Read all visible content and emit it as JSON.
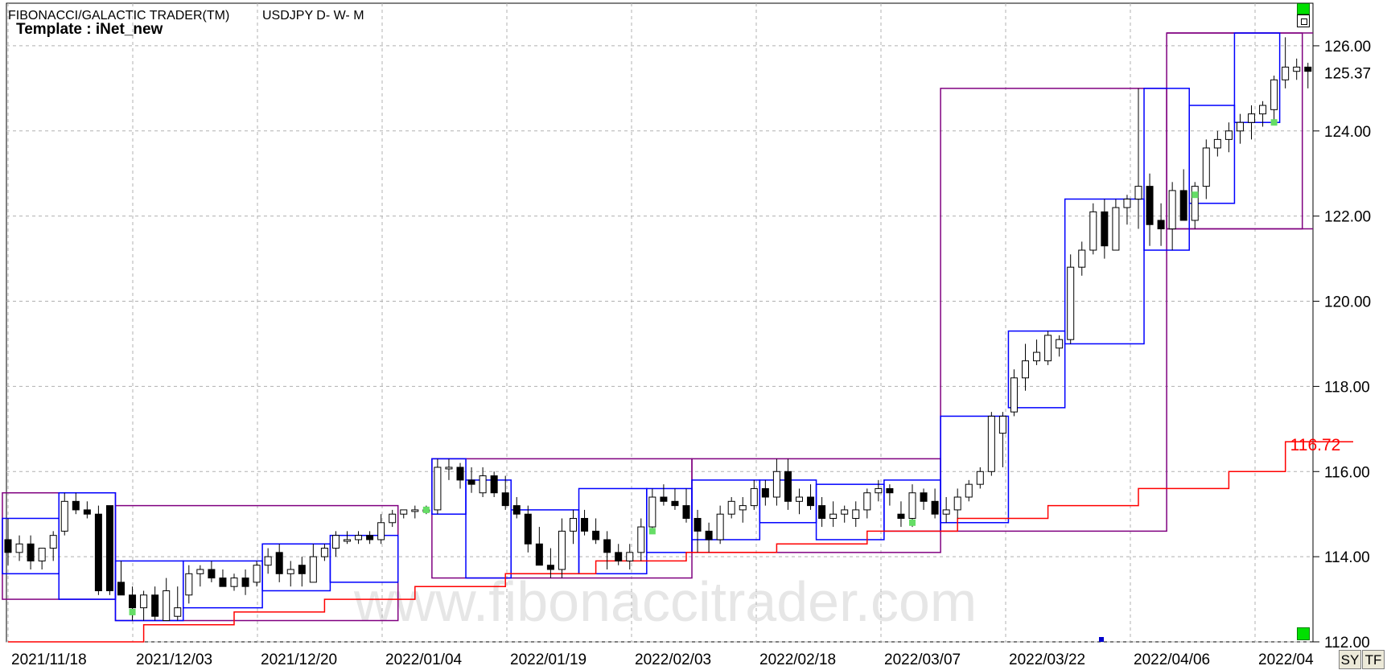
{
  "header": {
    "app_title": "FIBONACCI/GALACTIC TRADER(TM)",
    "instrument": "USDJPY D- W- M",
    "template": "Template : iNet_new"
  },
  "watermark": "www.fibonaccitrader.com",
  "buttons": {
    "sy": "SY",
    "tf": "TF"
  },
  "colors": {
    "candle_up": "#ffffff",
    "candle_down": "#000000",
    "weekly_box": "#0000ff",
    "monthly_box": "#800080",
    "stop_line": "#ff0000",
    "grid": "#b0b0b0",
    "marker": "#66dd66"
  },
  "chart_data": {
    "type": "candlestick",
    "title": "USDJPY D- W- M",
    "ylim": [
      112.0,
      127.0
    ],
    "yticks": [
      "126.00",
      "124.00",
      "122.00",
      "120.00",
      "118.00",
      "116.00",
      "114.00",
      "112.00"
    ],
    "last_price": "125.37",
    "stop_value": "116.72",
    "xticks": [
      "2021/11/18",
      "2021/12/03",
      "2021/12/20",
      "2022/01/04",
      "2022/01/19",
      "2022/02/03",
      "2022/02/18",
      "2022/03/07",
      "2022/03/22",
      "2022/04/06",
      "2022/04"
    ],
    "candles": [
      [
        114.4,
        114.9,
        113.8,
        114.1
      ],
      [
        114.1,
        114.5,
        113.9,
        114.3
      ],
      [
        114.3,
        114.5,
        113.7,
        113.9
      ],
      [
        113.9,
        114.2,
        113.7,
        114.2
      ],
      [
        114.2,
        114.6,
        113.9,
        114.5
      ],
      [
        114.6,
        115.5,
        114.5,
        115.3
      ],
      [
        115.3,
        115.5,
        115.0,
        115.1
      ],
      [
        115.1,
        115.3,
        114.9,
        115.0
      ],
      [
        115.0,
        115.2,
        113.1,
        113.2
      ],
      [
        115.2,
        115.2,
        113.1,
        113.2
      ],
      [
        113.4,
        113.9,
        113.1,
        113.1
      ],
      [
        113.1,
        113.3,
        112.5,
        112.8
      ],
      [
        112.8,
        113.2,
        112.5,
        113.1
      ],
      [
        113.1,
        113.3,
        112.5,
        112.6
      ],
      [
        112.5,
        113.5,
        112.5,
        113.2
      ],
      [
        112.6,
        113.3,
        112.5,
        112.8
      ],
      [
        113.1,
        113.8,
        112.9,
        113.6
      ],
      [
        113.6,
        113.8,
        113.3,
        113.7
      ],
      [
        113.7,
        113.9,
        113.4,
        113.5
      ],
      [
        113.5,
        113.7,
        113.3,
        113.3
      ],
      [
        113.3,
        113.6,
        113.2,
        113.5
      ],
      [
        113.5,
        113.7,
        113.1,
        113.3
      ],
      [
        113.4,
        113.9,
        113.3,
        113.8
      ],
      [
        113.8,
        114.2,
        113.6,
        114.0
      ],
      [
        114.1,
        114.3,
        113.4,
        113.6
      ],
      [
        113.6,
        113.9,
        113.3,
        113.7
      ],
      [
        113.8,
        114.0,
        113.3,
        113.6
      ],
      [
        113.4,
        114.3,
        113.4,
        114.0
      ],
      [
        114.0,
        114.3,
        113.9,
        114.2
      ],
      [
        114.2,
        114.6,
        114.0,
        114.5
      ],
      [
        114.4,
        114.6,
        114.3,
        114.4
      ],
      [
        114.4,
        114.6,
        114.3,
        114.5
      ],
      [
        114.5,
        114.6,
        114.3,
        114.4
      ],
      [
        114.4,
        115.0,
        114.3,
        114.8
      ],
      [
        114.8,
        115.1,
        114.7,
        115.0
      ],
      [
        115.0,
        115.1,
        114.9,
        115.1
      ],
      [
        115.1,
        115.2,
        114.9,
        115.1
      ],
      [
        115.1,
        115.2,
        115.0,
        115.1
      ],
      [
        115.1,
        116.3,
        115.0,
        116.1
      ],
      [
        116.1,
        116.3,
        115.8,
        116.1
      ],
      [
        116.1,
        116.2,
        115.6,
        115.8
      ],
      [
        115.8,
        116.1,
        115.5,
        115.7
      ],
      [
        115.5,
        116.1,
        115.4,
        115.9
      ],
      [
        115.9,
        116.0,
        115.4,
        115.5
      ],
      [
        115.5,
        115.9,
        115.1,
        115.2
      ],
      [
        115.2,
        115.4,
        114.9,
        115.0
      ],
      [
        115.0,
        115.2,
        114.1,
        114.3
      ],
      [
        114.3,
        114.7,
        113.8,
        113.8
      ],
      [
        113.8,
        114.2,
        113.5,
        113.7
      ],
      [
        113.7,
        114.9,
        113.5,
        114.6
      ],
      [
        114.6,
        115.1,
        114.3,
        114.9
      ],
      [
        114.9,
        115.1,
        114.5,
        114.6
      ],
      [
        114.6,
        114.9,
        114.3,
        114.4
      ],
      [
        114.4,
        114.6,
        113.7,
        114.1
      ],
      [
        114.1,
        114.3,
        113.8,
        113.9
      ],
      [
        113.9,
        114.3,
        113.7,
        114.1
      ],
      [
        114.1,
        114.9,
        113.9,
        114.7
      ],
      [
        114.7,
        115.6,
        114.6,
        115.4
      ],
      [
        115.4,
        115.7,
        115.2,
        115.3
      ],
      [
        115.3,
        115.6,
        115.1,
        115.2
      ],
      [
        115.2,
        115.6,
        114.8,
        114.9
      ],
      [
        114.9,
        115.1,
        114.1,
        114.6
      ],
      [
        114.6,
        114.8,
        114.1,
        114.4
      ],
      [
        114.4,
        115.2,
        114.3,
        115.0
      ],
      [
        115.0,
        115.4,
        114.9,
        115.3
      ],
      [
        115.1,
        115.4,
        114.8,
        115.2
      ],
      [
        115.2,
        115.8,
        115.1,
        115.6
      ],
      [
        115.6,
        115.8,
        115.2,
        115.4
      ],
      [
        115.4,
        116.3,
        115.2,
        116.0
      ],
      [
        116.0,
        116.3,
        115.1,
        115.3
      ],
      [
        115.3,
        115.6,
        115.0,
        115.4
      ],
      [
        115.4,
        115.7,
        115.1,
        115.2
      ],
      [
        115.2,
        115.4,
        114.7,
        114.9
      ],
      [
        114.9,
        115.3,
        114.7,
        115.0
      ],
      [
        115.0,
        115.2,
        114.8,
        115.1
      ],
      [
        114.9,
        115.3,
        114.7,
        115.1
      ],
      [
        115.1,
        115.6,
        114.9,
        115.5
      ],
      [
        115.5,
        115.8,
        115.3,
        115.6
      ],
      [
        115.6,
        115.7,
        115.2,
        115.5
      ],
      [
        115.0,
        115.3,
        114.7,
        114.9
      ],
      [
        114.9,
        115.7,
        114.7,
        115.5
      ],
      [
        115.5,
        115.6,
        115.1,
        115.3
      ],
      [
        115.3,
        115.6,
        114.9,
        115.0
      ],
      [
        115.0,
        115.4,
        114.8,
        115.1
      ],
      [
        115.1,
        115.6,
        114.9,
        115.4
      ],
      [
        115.4,
        115.8,
        115.3,
        115.7
      ],
      [
        115.7,
        116.1,
        115.6,
        116.0
      ],
      [
        116.0,
        117.4,
        115.9,
        117.3
      ],
      [
        116.9,
        117.4,
        116.1,
        117.3
      ],
      [
        117.4,
        118.4,
        117.3,
        118.2
      ],
      [
        118.2,
        119.0,
        117.9,
        118.6
      ],
      [
        118.6,
        119.1,
        118.5,
        118.8
      ],
      [
        118.6,
        119.3,
        118.5,
        119.2
      ],
      [
        118.9,
        119.2,
        118.7,
        119.1
      ],
      [
        119.1,
        121.1,
        119.0,
        120.8
      ],
      [
        120.8,
        121.4,
        120.6,
        121.2
      ],
      [
        121.2,
        122.3,
        121.1,
        122.1
      ],
      [
        122.1,
        122.4,
        121.0,
        121.3
      ],
      [
        121.2,
        122.4,
        121.2,
        122.2
      ],
      [
        122.2,
        122.5,
        121.8,
        122.4
      ],
      [
        122.4,
        125.0,
        121.7,
        122.7
      ],
      [
        122.7,
        123.0,
        121.3,
        121.8
      ],
      [
        121.9,
        122.3,
        121.3,
        121.7
      ],
      [
        121.7,
        122.8,
        121.2,
        122.6
      ],
      [
        122.6,
        123.1,
        121.9,
        121.9
      ],
      [
        121.9,
        122.8,
        121.7,
        122.7
      ],
      [
        122.7,
        123.8,
        122.4,
        123.6
      ],
      [
        123.6,
        124.0,
        123.4,
        123.8
      ],
      [
        123.8,
        124.2,
        123.5,
        124.0
      ],
      [
        124.0,
        124.4,
        123.7,
        124.2
      ],
      [
        124.2,
        124.6,
        123.8,
        124.4
      ],
      [
        124.4,
        124.7,
        124.1,
        124.6
      ],
      [
        124.5,
        125.3,
        124.2,
        125.2
      ],
      [
        125.2,
        126.2,
        125.0,
        125.5
      ],
      [
        125.4,
        125.7,
        125.2,
        125.5
      ],
      [
        125.5,
        125.6,
        125.0,
        125.4
      ]
    ],
    "weekly_boxes": [
      [
        0,
        4,
        113.6,
        114.9
      ],
      [
        5,
        9,
        113.0,
        115.5
      ],
      [
        10,
        15,
        112.5,
        113.9
      ],
      [
        16,
        22,
        112.8,
        113.9
      ],
      [
        23,
        28,
        113.2,
        114.3
      ],
      [
        29,
        34,
        113.4,
        114.5
      ],
      [
        38,
        40,
        115.0,
        116.3
      ],
      [
        41,
        44,
        113.5,
        115.8
      ],
      [
        45,
        50,
        113.6,
        115.1
      ],
      [
        51,
        56,
        113.6,
        115.6
      ],
      [
        57,
        60,
        114.1,
        115.6
      ],
      [
        61,
        66,
        114.4,
        115.8
      ],
      [
        67,
        71,
        114.8,
        115.8
      ],
      [
        72,
        77,
        114.4,
        115.7
      ],
      [
        78,
        82,
        114.6,
        115.8
      ],
      [
        83,
        88,
        114.8,
        117.3
      ],
      [
        89,
        93,
        117.5,
        119.3
      ],
      [
        94,
        100,
        119.0,
        122.4
      ],
      [
        101,
        104,
        121.2,
        125.0
      ],
      [
        105,
        108,
        122.3,
        124.6
      ],
      [
        109,
        112,
        124.2,
        126.3
      ]
    ],
    "monthly_boxes": [
      [
        0,
        9,
        113.0,
        115.5
      ],
      [
        10,
        34,
        112.5,
        115.2
      ],
      [
        38,
        60,
        113.5,
        116.3
      ],
      [
        61,
        82,
        114.1,
        116.3
      ],
      [
        83,
        102,
        114.6,
        125.0
      ],
      [
        103,
        114,
        121.7,
        126.3
      ]
    ],
    "stop_line": [
      [
        0,
        112.0
      ],
      [
        12,
        112.0
      ],
      [
        12,
        112.4
      ],
      [
        20,
        112.4
      ],
      [
        20,
        112.7
      ],
      [
        28,
        112.7
      ],
      [
        28,
        113.0
      ],
      [
        36,
        113.0
      ],
      [
        36,
        113.3
      ],
      [
        44,
        113.3
      ],
      [
        44,
        113.6
      ],
      [
        52,
        113.6
      ],
      [
        52,
        113.9
      ],
      [
        60,
        113.9
      ],
      [
        60,
        114.1
      ],
      [
        68,
        114.1
      ],
      [
        68,
        114.3
      ],
      [
        76,
        114.3
      ],
      [
        76,
        114.6
      ],
      [
        84,
        114.6
      ],
      [
        84,
        114.9
      ],
      [
        92,
        114.9
      ],
      [
        92,
        115.2
      ],
      [
        100,
        115.2
      ],
      [
        100,
        115.6
      ],
      [
        108,
        115.6
      ],
      [
        108,
        116.0
      ],
      [
        113,
        116.0
      ],
      [
        113,
        116.7
      ],
      [
        119,
        116.7
      ]
    ],
    "markers": [
      {
        "i": 11,
        "y": 112.7
      },
      {
        "i": 37,
        "y": 115.1
      },
      {
        "i": 57,
        "y": 114.6
      },
      {
        "i": 80,
        "y": 114.8
      },
      {
        "i": 105,
        "y": 122.5
      },
      {
        "i": 112,
        "y": 124.2
      }
    ]
  }
}
